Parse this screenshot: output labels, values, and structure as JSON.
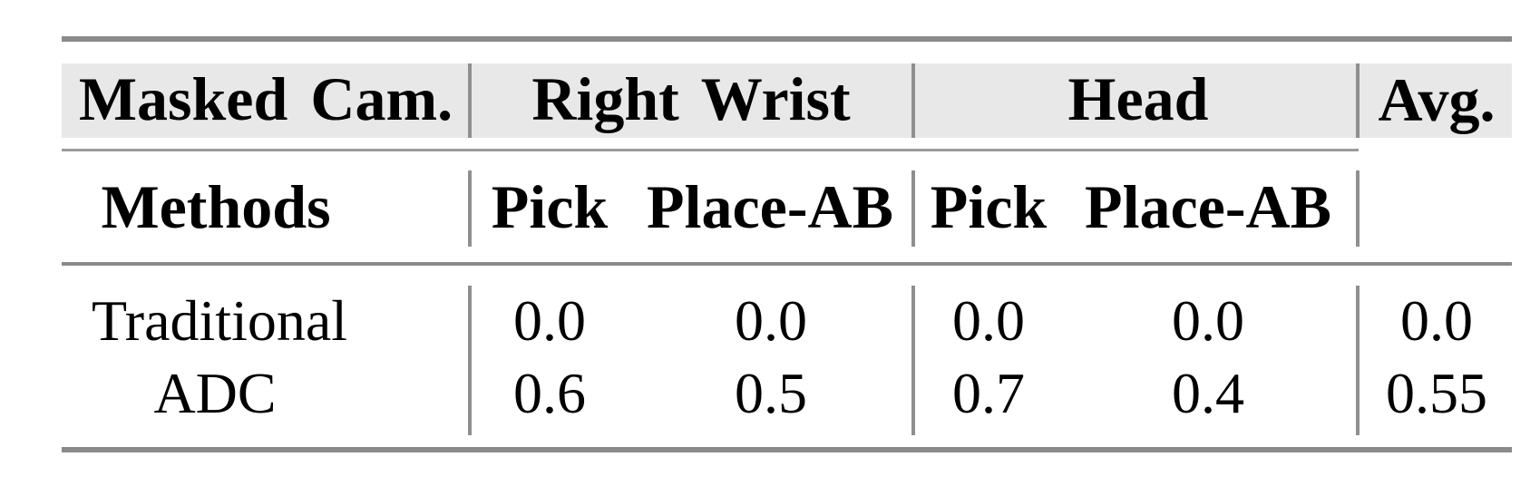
{
  "table": {
    "header_row1": {
      "col1": "Masked Cam.",
      "group_right_wrist": "Right Wrist",
      "group_head": "Head",
      "avg": "Avg."
    },
    "header_row2": {
      "col1": "Methods",
      "rw_pick": "Pick",
      "rw_place": "Place-AB",
      "head_pick": "Pick",
      "head_place": "Place-AB"
    },
    "rows": [
      {
        "method": "Traditional",
        "rw_pick": "0.0",
        "rw_place": "0.0",
        "head_pick": "0.0",
        "head_place": "0.0",
        "avg": "0.0"
      },
      {
        "method": "ADC",
        "rw_pick": "0.6",
        "rw_place": "0.5",
        "head_pick": "0.7",
        "head_place": "0.4",
        "avg": "0.55"
      }
    ],
    "colors": {
      "background": "#ffffff",
      "header_band": "#e8e8e8",
      "rule_heavy": "#8a8a8a",
      "rule_light": "#9c9c9c",
      "rule_vertical": "#8f8f8f",
      "text": "#000000"
    }
  }
}
